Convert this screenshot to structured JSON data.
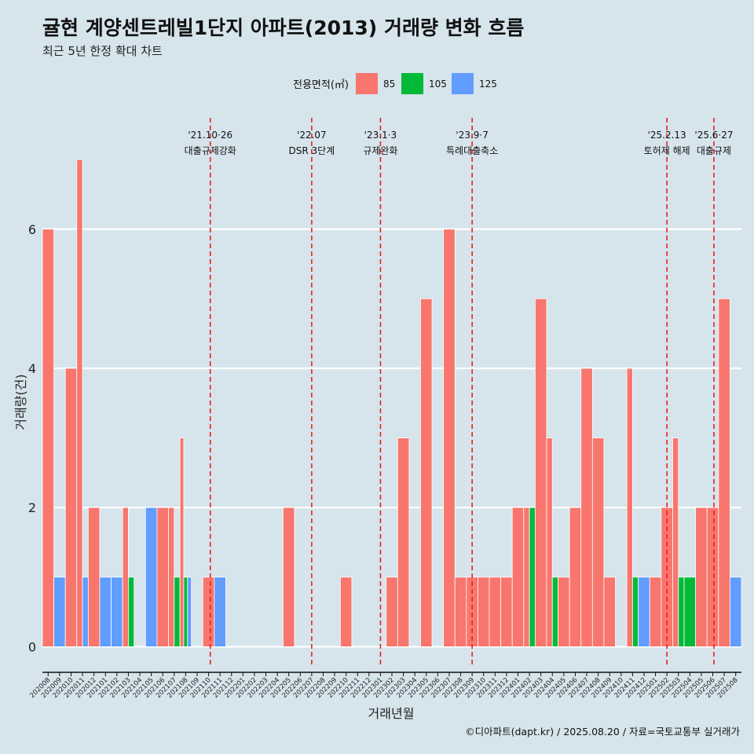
{
  "title": "귤현 계양센트레빌1단지 아파트(2013) 거래량 변화 흐름",
  "subtitle": "최근 5년 한정 확대 차트",
  "caption": "©디아파트(dapt.kr) / 2025.08.20 / 자료=국토교통부 실거래가",
  "colors": {
    "85": "#f8766d",
    "105": "#00ba38",
    "125": "#619cff",
    "background": "#d6e4ec",
    "vline": "#e8231f"
  },
  "chart_data": {
    "type": "bar",
    "title": "귤현 계양센트레빌1단지 아파트(2013) 거래량 변화 흐름",
    "subtitle": "최근 5년 한정 확대 차트",
    "xlabel": "거래년월",
    "ylabel": "거래량(건)",
    "ylim": [
      -0.3,
      7.6
    ],
    "yticks": [
      0,
      2,
      4,
      6
    ],
    "grid": "horizontal major lines",
    "legend": {
      "title": "전용면적(㎡)",
      "position": "top",
      "entries": [
        "85",
        "105",
        "125"
      ]
    },
    "categories": [
      "202008",
      "202009",
      "202010",
      "202011",
      "202012",
      "202101",
      "202102",
      "202103",
      "202104",
      "202105",
      "202106",
      "202107",
      "202108",
      "202109",
      "202110",
      "202111",
      "202112",
      "202201",
      "202202",
      "202203",
      "202204",
      "202205",
      "202206",
      "202207",
      "202208",
      "202209",
      "202210",
      "202211",
      "202212",
      "202301",
      "202302",
      "202303",
      "202304",
      "202305",
      "202306",
      "202307",
      "202308",
      "202309",
      "202310",
      "202311",
      "202312",
      "202401",
      "202402",
      "202403",
      "202404",
      "202405",
      "202406",
      "202407",
      "202408",
      "202409",
      "202410",
      "202411",
      "202412",
      "202501",
      "202502",
      "202503",
      "202504",
      "202505",
      "202506",
      "202507",
      "202508"
    ],
    "series": [
      {
        "name": "85",
        "values": [
          6,
          0,
          4,
          7,
          2,
          0,
          0,
          2,
          0,
          0,
          2,
          2,
          3,
          0,
          1,
          0,
          0,
          0,
          0,
          0,
          0,
          2,
          0,
          0,
          0,
          0,
          1,
          0,
          0,
          0,
          1,
          3,
          0,
          5,
          0,
          6,
          1,
          1,
          1,
          1,
          1,
          2,
          2,
          5,
          3,
          1,
          2,
          4,
          3,
          1,
          0,
          4,
          0,
          1,
          2,
          3,
          0,
          2,
          2,
          5,
          0
        ]
      },
      {
        "name": "105",
        "values": [
          0,
          0,
          0,
          0,
          0,
          0,
          0,
          1,
          0,
          0,
          0,
          1,
          1,
          0,
          0,
          0,
          0,
          0,
          0,
          0,
          0,
          0,
          0,
          0,
          0,
          0,
          0,
          0,
          0,
          0,
          0,
          0,
          0,
          0,
          0,
          0,
          0,
          0,
          0,
          0,
          0,
          0,
          2,
          0,
          1,
          0,
          0,
          0,
          0,
          0,
          0,
          1,
          0,
          0,
          0,
          1,
          1,
          0,
          0,
          0,
          0
        ]
      },
      {
        "name": "125",
        "values": [
          0,
          1,
          0,
          1,
          0,
          1,
          1,
          0,
          0,
          2,
          0,
          0,
          1,
          0,
          0,
          1,
          0,
          0,
          0,
          0,
          0,
          0,
          0,
          0,
          0,
          0,
          0,
          0,
          0,
          0,
          0,
          0,
          0,
          0,
          0,
          0,
          0,
          0,
          0,
          0,
          0,
          0,
          0,
          0,
          0,
          0,
          0,
          0,
          0,
          0,
          0,
          0,
          1,
          0,
          0,
          0,
          0,
          0,
          0,
          0,
          1
        ]
      }
    ],
    "annotations": [
      {
        "x": "202110",
        "offset": 0.15,
        "line1": "'21.10·26",
        "line2": "대출규제강화"
      },
      {
        "x": "202207",
        "offset": 0.0,
        "line1": "'22.07",
        "line2": "DSR 3단계"
      },
      {
        "x": "202301",
        "offset": 0.0,
        "line1": "'23.1·3",
        "line2": "규제완화"
      },
      {
        "x": "202309",
        "offset": 0.0,
        "line1": "'23.9·7",
        "line2": "특례대출축소"
      },
      {
        "x": "202502",
        "offset": 0.0,
        "line1": "'25.2.13",
        "line2": "토허제 해제"
      },
      {
        "x": "202506",
        "offset": 0.1,
        "line1": "'25.6·27",
        "line2": "대출규제"
      }
    ]
  }
}
